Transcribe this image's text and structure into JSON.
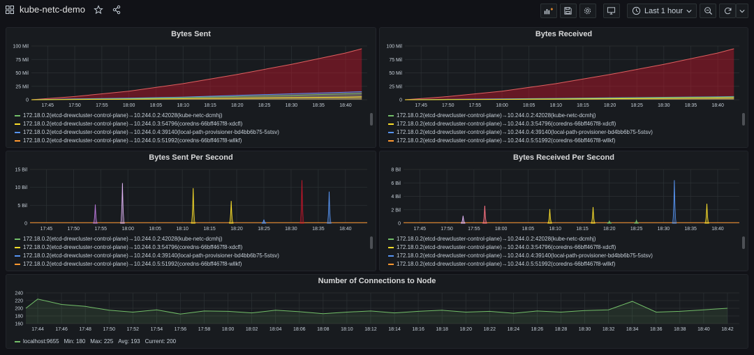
{
  "dashboard": {
    "title": "kube-netc-demo",
    "time_range": "Last 1 hour"
  },
  "colors": {
    "s1": "#73bf69",
    "s2": "#fade2a",
    "s3": "#5794f2",
    "s4": "#ff9830",
    "fill_red": "#c4162a"
  },
  "legend_series": [
    "172.18.0.2(etcd-drewcluster-control-plane)→10.244.0.2:42028(kube-netc-dcmhj)",
    "172.18.0.2(etcd-drewcluster-control-plane)→10.244.0.3:54796(coredns-66bff467f8-xdcfl)",
    "172.18.0.2(etcd-drewcluster-control-plane)→10.244.0.4:39140(local-path-provisioner-bd4bb6b75-5stsv)",
    "172.18.0.2(etcd-drewcluster-control-plane)→10.244.0.5:51992(coredns-66bff467f8-wllkf)"
  ],
  "panels": {
    "bytes_sent": {
      "title": "Bytes Sent",
      "y_ticks": [
        "100 Mil",
        "75 Mil",
        "50 Mil",
        "25 Mil",
        "0"
      ],
      "x_ticks": [
        "17:45",
        "17:50",
        "17:55",
        "18:00",
        "18:05",
        "18:10",
        "18:15",
        "18:20",
        "18:25",
        "18:30",
        "18:35",
        "18:40"
      ]
    },
    "bytes_received": {
      "title": "Bytes Received",
      "y_ticks": [
        "100 Mil",
        "75 Mil",
        "50 Mil",
        "25 Mil",
        "0"
      ],
      "x_ticks": [
        "17:45",
        "17:50",
        "17:55",
        "18:00",
        "18:05",
        "18:10",
        "18:15",
        "18:20",
        "18:25",
        "18:30",
        "18:35",
        "18:40"
      ]
    },
    "bytes_sent_ps": {
      "title": "Bytes Sent Per Second",
      "y_ticks": [
        "15 Bil",
        "10 Bil",
        "5 Bil",
        "0"
      ],
      "x_ticks": [
        "17:45",
        "17:50",
        "17:55",
        "18:00",
        "18:05",
        "18:10",
        "18:15",
        "18:20",
        "18:25",
        "18:30",
        "18:35",
        "18:40"
      ]
    },
    "bytes_received_ps": {
      "title": "Bytes Received Per Second",
      "y_ticks": [
        "8 Bil",
        "6 Bil",
        "4 Bil",
        "2 Bil",
        "0"
      ],
      "x_ticks": [
        "17:45",
        "17:50",
        "17:55",
        "18:00",
        "18:05",
        "18:10",
        "18:15",
        "18:20",
        "18:25",
        "18:30",
        "18:35",
        "18:40"
      ]
    },
    "connections": {
      "title": "Number of Connections to Node",
      "y_ticks": [
        "240",
        "220",
        "200",
        "180",
        "160"
      ],
      "x_ticks": [
        "17:44",
        "17:46",
        "17:48",
        "17:50",
        "17:52",
        "17:54",
        "17:56",
        "17:58",
        "18:00",
        "18:02",
        "18:04",
        "18:06",
        "18:08",
        "18:10",
        "18:12",
        "18:14",
        "18:16",
        "18:18",
        "18:20",
        "18:22",
        "18:24",
        "18:26",
        "18:28",
        "18:30",
        "18:32",
        "18:34",
        "18:36",
        "18:38",
        "18:40",
        "18:42"
      ],
      "legend": {
        "name": "localhost:9655",
        "min": "Min: 180",
        "max": "Max: 225",
        "avg": "Avg: 193",
        "current": "Current: 200"
      }
    }
  },
  "chart_data": [
    {
      "type": "area",
      "title": "Bytes Sent",
      "ylim": [
        0,
        100000000
      ],
      "x": [
        "17:42",
        "17:50",
        "18:00",
        "18:10",
        "18:20",
        "18:30",
        "18:40",
        "18:43"
      ],
      "series": [
        {
          "name": "172.18.0.2(etcd-drewcluster-control-plane)→10.244.0.2:42028(kube-netc-dcmhj)",
          "values": [
            0,
            1000000,
            2000000,
            4000000,
            6000000,
            8000000,
            11000000,
            12000000
          ]
        },
        {
          "name": "172.18.0.2(etcd-drewcluster-control-plane)→10.244.0.3:54796(coredns-66bff467f8-xdcfl)",
          "values": [
            0,
            500000,
            1000000,
            2000000,
            3000000,
            4000000,
            5000000,
            5500000
          ]
        },
        {
          "name": "172.18.0.2(etcd-drewcluster-control-plane)→10.244.0.4:39140(local-path-provisioner-bd4bb6b75-5stsv)",
          "values": [
            0,
            1500000,
            3000000,
            5000000,
            8000000,
            11000000,
            14000000,
            15000000
          ]
        },
        {
          "name": "172.18.0.2(etcd-drewcluster-control-plane)→10.244.0.5:51992(coredns-66bff467f8-wllkf)",
          "values": [
            0,
            6000000,
            16000000,
            30000000,
            47000000,
            66000000,
            87000000,
            95000000
          ]
        }
      ]
    },
    {
      "type": "area",
      "title": "Bytes Received",
      "ylim": [
        0,
        100000000
      ],
      "x": [
        "17:42",
        "17:50",
        "18:00",
        "18:10",
        "18:20",
        "18:30",
        "18:40",
        "18:43"
      ],
      "series": [
        {
          "name": "172.18.0.2(etcd-drewcluster-control-plane)→10.244.0.2:42028(kube-netc-dcmhj)",
          "values": [
            0,
            500000,
            1000000,
            2000000,
            3000000,
            4000000,
            5000000,
            5500000
          ]
        },
        {
          "name": "172.18.0.2(etcd-drewcluster-control-plane)→10.244.0.3:54796(coredns-66bff467f8-xdcfl)",
          "values": [
            0,
            300000,
            700000,
            1200000,
            1800000,
            2500000,
            3300000,
            3500000
          ]
        },
        {
          "name": "172.18.0.2(etcd-drewcluster-control-plane)→10.244.0.4:39140(local-path-provisioner-bd4bb6b75-5stsv)",
          "values": [
            0,
            800000,
            1500000,
            2500000,
            3500000,
            4500000,
            5500000,
            6000000
          ]
        },
        {
          "name": "172.18.0.2(etcd-drewcluster-control-plane)→10.244.0.5:51992(coredns-66bff467f8-wllkf)",
          "values": [
            0,
            6000000,
            16000000,
            30000000,
            47000000,
            66000000,
            87000000,
            95000000
          ]
        }
      ]
    },
    {
      "type": "line",
      "title": "Bytes Sent Per Second",
      "ylim": [
        0,
        15000000000
      ],
      "peaks_time": [
        "17:54",
        "17:59",
        "18:12",
        "18:19",
        "18:25",
        "18:32",
        "18:37"
      ],
      "peaks_value": [
        5200000000,
        11200000000,
        9800000000,
        6200000000,
        1000000000,
        12000000000,
        8800000000
      ],
      "peak_colors": [
        "#b877d9",
        "#e0b4f5",
        "#fade2a",
        "#fade2a",
        "#5794f2",
        "#c4162a",
        "#5794f2"
      ]
    },
    {
      "type": "line",
      "title": "Bytes Received Per Second",
      "ylim": [
        0,
        8000000000
      ],
      "peaks_time": [
        "17:53",
        "17:57",
        "18:09",
        "18:17",
        "18:20",
        "18:25",
        "18:32",
        "18:38"
      ],
      "peaks_value": [
        1100000000,
        2600000000,
        2100000000,
        2400000000,
        300000000,
        400000000,
        6400000000,
        2900000000
      ],
      "peak_colors": [
        "#e0b4f5",
        "#ff7383",
        "#fade2a",
        "#fade2a",
        "#73bf69",
        "#73bf69",
        "#5794f2",
        "#fade2a"
      ]
    },
    {
      "type": "area",
      "title": "Number of Connections to Node",
      "ylim": [
        160,
        240
      ],
      "x": [
        "17:43",
        "17:44",
        "17:46",
        "17:48",
        "17:50",
        "17:52",
        "17:54",
        "17:56",
        "17:58",
        "18:00",
        "18:02",
        "18:04",
        "18:06",
        "18:08",
        "18:10",
        "18:12",
        "18:14",
        "18:16",
        "18:18",
        "18:20",
        "18:22",
        "18:24",
        "18:26",
        "18:28",
        "18:30",
        "18:32",
        "18:34",
        "18:36",
        "18:38",
        "18:40",
        "18:42"
      ],
      "series": [
        {
          "name": "localhost:9655",
          "values": [
            200,
            224,
            210,
            205,
            195,
            190,
            196,
            185,
            193,
            192,
            188,
            195,
            191,
            186,
            190,
            193,
            188,
            192,
            195,
            190,
            192,
            187,
            193,
            190,
            194,
            196,
            218,
            190,
            192,
            196,
            200
          ]
        }
      ]
    }
  ]
}
